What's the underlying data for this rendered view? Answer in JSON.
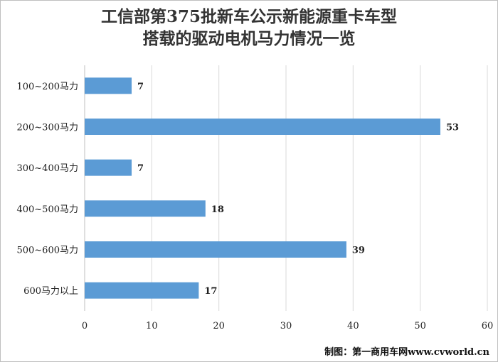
{
  "chart_data": {
    "type": "bar",
    "orientation": "horizontal",
    "title_lines": [
      "工信部第375批新车公示新能源重卡车型",
      "搭载的驱动电机马力情况一览"
    ],
    "categories": [
      "100~200马力",
      "200~300马力",
      "300~400马力",
      "400~500马力",
      "500~600马力",
      "600马力以上"
    ],
    "values": [
      7,
      53,
      7,
      18,
      39,
      17
    ],
    "xticks": [
      "0",
      "10",
      "20",
      "30",
      "40",
      "50",
      "60"
    ],
    "xlim": [
      0,
      60
    ],
    "grid": true,
    "bar_color": "#5b9bd5",
    "grid_color": "#d9d9d9",
    "legend": "none"
  },
  "credit": "制图：第一商用车网www.cvworld.cn"
}
